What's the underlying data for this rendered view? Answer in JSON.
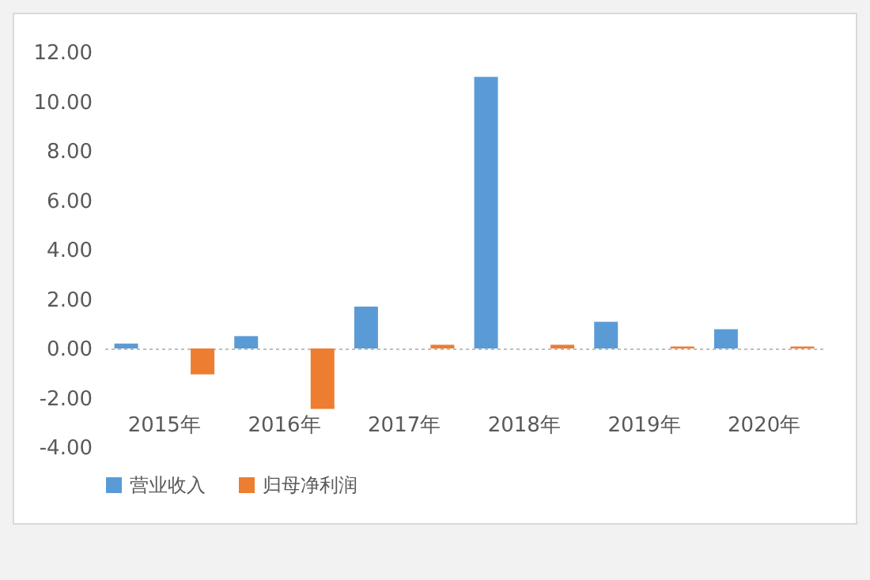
{
  "chart_data": {
    "type": "bar",
    "categories": [
      "2015年",
      "2016年",
      "2017年",
      "2018年",
      "2019年",
      "2020年"
    ],
    "series": [
      {
        "name": "营业收入",
        "color": "#5b9bd5",
        "values": [
          0.2,
          0.5,
          1.7,
          11.0,
          1.08,
          0.78
        ]
      },
      {
        "name": "归母净利润",
        "color": "#ed7d31",
        "values": [
          -1.05,
          -2.45,
          0.15,
          0.15,
          0.08,
          0.08
        ]
      }
    ],
    "ylim": [
      -4,
      12
    ],
    "yticks": [
      {
        "value": -4,
        "label": "-4.00"
      },
      {
        "value": -2,
        "label": "-2.00"
      },
      {
        "value": 0,
        "label": "0.00"
      },
      {
        "value": 2,
        "label": "2.00"
      },
      {
        "value": 4,
        "label": "4.00"
      },
      {
        "value": 6,
        "label": "6.00"
      },
      {
        "value": 8,
        "label": "8.00"
      },
      {
        "value": 10,
        "label": "10.00"
      },
      {
        "value": 12,
        "label": "12.00"
      }
    ],
    "legend": "bottom"
  }
}
